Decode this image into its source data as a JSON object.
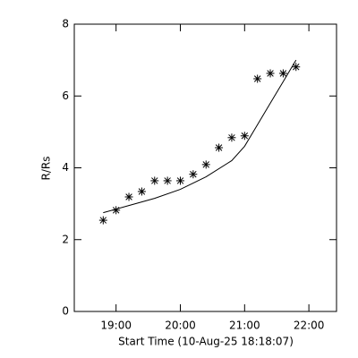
{
  "chart_data": {
    "type": "scatter",
    "xlabel": "Start Time (10-Aug-25 18:18:07)",
    "ylabel": "R/Rs",
    "xlim": [
      18.35,
      22.43
    ],
    "ylim": [
      0,
      8
    ],
    "xticks": [
      {
        "value": 19,
        "label": "19:00"
      },
      {
        "value": 20,
        "label": "20:00"
      },
      {
        "value": 21,
        "label": "21:00"
      },
      {
        "value": 22,
        "label": "22:00"
      }
    ],
    "yticks": [
      0,
      2,
      4,
      6,
      8
    ],
    "series": [
      {
        "type": "scatter",
        "color": "#000000",
        "x": [
          18.8,
          19.0,
          19.2,
          19.4,
          19.6,
          19.8,
          20.0,
          20.2,
          20.4,
          20.6,
          20.8,
          21.0,
          21.2,
          21.4,
          21.6,
          21.8
        ],
        "values": [
          2.54,
          2.82,
          3.19,
          3.34,
          3.64,
          3.64,
          3.64,
          3.82,
          4.09,
          4.56,
          4.84,
          4.89,
          6.48,
          6.63,
          6.63,
          6.81
        ]
      },
      {
        "type": "line",
        "color": "#000000",
        "x": [
          18.8,
          19.2,
          19.6,
          20.0,
          20.4,
          20.8,
          21.0,
          21.2,
          21.4,
          21.6,
          21.8
        ],
        "values": [
          2.75,
          2.95,
          3.15,
          3.4,
          3.75,
          4.2,
          4.6,
          5.2,
          5.8,
          6.4,
          7.0
        ]
      }
    ]
  }
}
